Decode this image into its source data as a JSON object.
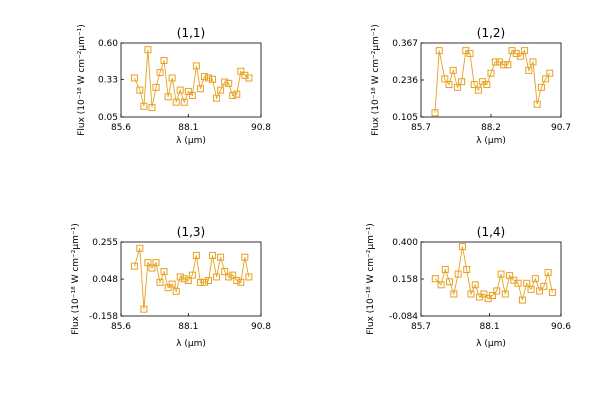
{
  "chart_data": [
    {
      "type": "line",
      "title": "(1,1)",
      "xlabel": "λ (μm)",
      "ylabel": "Flux (10⁻¹⁸ W cm⁻²μm⁻¹)",
      "xlim": [
        85.6,
        90.8
      ],
      "ylim": [
        0.05,
        0.6
      ],
      "xticks": [
        "85.6",
        "88.1",
        "90.8"
      ],
      "yticks": [
        "0.05",
        "0.33",
        "0.60"
      ],
      "series_color": "#e8a020",
      "marker": "square",
      "x": [
        86.1,
        86.3,
        86.45,
        86.6,
        86.75,
        86.9,
        87.05,
        87.2,
        87.35,
        87.5,
        87.65,
        87.8,
        87.95,
        88.1,
        88.25,
        88.4,
        88.55,
        88.7,
        88.85,
        89.0,
        89.15,
        89.3,
        89.45,
        89.6,
        89.75,
        89.9,
        90.05,
        90.2,
        90.35
      ],
      "y": [
        0.34,
        0.25,
        0.13,
        0.55,
        0.12,
        0.27,
        0.38,
        0.47,
        0.2,
        0.34,
        0.16,
        0.25,
        0.16,
        0.24,
        0.21,
        0.43,
        0.26,
        0.35,
        0.34,
        0.33,
        0.19,
        0.25,
        0.31,
        0.3,
        0.21,
        0.22,
        0.39,
        0.36,
        0.34
      ]
    },
    {
      "type": "line",
      "title": "(1,2)",
      "xlabel": "λ (μm)",
      "ylabel": "Flux (10⁻¹⁸ W cm⁻²μm⁻¹)",
      "xlim": [
        85.7,
        90.7
      ],
      "ylim": [
        0.105,
        0.367
      ],
      "xticks": [
        "85.7",
        "88.2",
        "90.7"
      ],
      "yticks": [
        "0.105",
        "0.236",
        "0.367"
      ],
      "series_color": "#e8a020",
      "marker": "square",
      "x": [
        86.2,
        86.35,
        86.55,
        86.7,
        86.85,
        87.0,
        87.15,
        87.3,
        87.45,
        87.6,
        87.75,
        87.9,
        88.05,
        88.2,
        88.35,
        88.5,
        88.65,
        88.8,
        88.95,
        89.1,
        89.25,
        89.4,
        89.55,
        89.7,
        89.85,
        90.0,
        90.15,
        90.3
      ],
      "y": [
        0.12,
        0.34,
        0.24,
        0.22,
        0.27,
        0.21,
        0.23,
        0.34,
        0.33,
        0.22,
        0.2,
        0.23,
        0.22,
        0.26,
        0.3,
        0.3,
        0.29,
        0.29,
        0.34,
        0.33,
        0.32,
        0.34,
        0.27,
        0.3,
        0.15,
        0.21,
        0.24,
        0.26
      ]
    },
    {
      "type": "line",
      "title": "(1,3)",
      "xlabel": "λ (μm)",
      "ylabel": "Flux (10⁻¹⁸ W cm⁻²μm⁻¹)",
      "xlim": [
        85.6,
        90.8
      ],
      "ylim": [
        -0.158,
        0.255
      ],
      "xticks": [
        "85.6",
        "88.1",
        "90.8"
      ],
      "yticks": [
        "-0.158",
        "0.048",
        "0.255"
      ],
      "series_color": "#e8a020",
      "marker": "square",
      "x": [
        86.1,
        86.3,
        86.45,
        86.6,
        86.75,
        86.9,
        87.05,
        87.2,
        87.35,
        87.5,
        87.65,
        87.8,
        87.95,
        88.1,
        88.25,
        88.4,
        88.55,
        88.7,
        88.85,
        89.0,
        89.15,
        89.3,
        89.45,
        89.6,
        89.75,
        89.9,
        90.05,
        90.2,
        90.35
      ],
      "y": [
        0.12,
        0.22,
        -0.12,
        0.14,
        0.11,
        0.14,
        0.03,
        0.09,
        0.0,
        0.02,
        -0.02,
        0.06,
        0.05,
        0.04,
        0.07,
        0.18,
        0.03,
        0.03,
        0.04,
        0.18,
        0.06,
        0.17,
        0.09,
        0.06,
        0.07,
        0.04,
        0.03,
        0.17,
        0.06
      ]
    },
    {
      "type": "line",
      "title": "(1,4)",
      "xlabel": "λ (μm)",
      "ylabel": "Flux (10⁻¹⁸ W cm⁻²μm⁻¹)",
      "xlim": [
        85.7,
        90.6
      ],
      "ylim": [
        -0.084,
        0.4
      ],
      "xticks": [
        "85.7",
        "88.1",
        "90.6"
      ],
      "yticks": [
        "-0.084",
        "0.158",
        "0.400"
      ],
      "series_color": "#e8a020",
      "marker": "square",
      "x": [
        86.2,
        86.4,
        86.55,
        86.7,
        86.85,
        87.0,
        87.15,
        87.3,
        87.45,
        87.6,
        87.75,
        87.9,
        88.05,
        88.2,
        88.35,
        88.5,
        88.65,
        88.8,
        88.95,
        89.1,
        89.25,
        89.4,
        89.55,
        89.7,
        89.85,
        90.0,
        90.15,
        90.3
      ],
      "y": [
        0.16,
        0.12,
        0.22,
        0.14,
        0.06,
        0.19,
        0.37,
        0.22,
        0.06,
        0.12,
        0.04,
        0.06,
        0.03,
        0.05,
        0.08,
        0.19,
        0.06,
        0.18,
        0.15,
        0.13,
        0.02,
        0.13,
        0.09,
        0.16,
        0.08,
        0.11,
        0.2,
        0.07
      ]
    }
  ]
}
